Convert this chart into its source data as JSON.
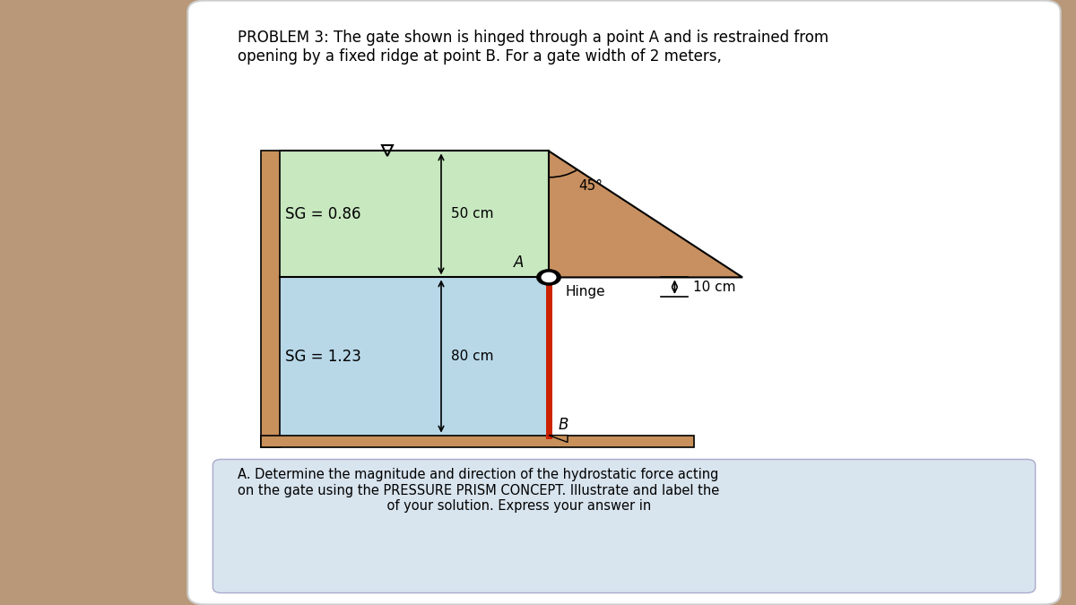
{
  "title_text": "PROBLEM 3: The gate shown is hinged through a point A and is restrained from\nopening by a fixed ridge at point B. For a gate width of 2 meters,",
  "bottom_text": "A. Determine the magnitude and direction of the hydrostatic force acting\non the gate using the PRESSURE PRISM CONCEPT. Illustrate and label the\n                                    of your solution. Express your answer in",
  "bg_color": "#b89878",
  "panel_bg": "#e8e8e8",
  "white_bg": "#ffffff",
  "fluid1_color": "#c8e8c0",
  "fluid2_color": "#b8d8e8",
  "gate_color": "#cc2200",
  "wall_brown": "#c8905a",
  "floor_brown": "#c8905a",
  "triangle_brown": "#c89060",
  "bottom_panel_color": "#d8e4ee",
  "sg1_text": "SG = 0.86",
  "sg2_text": "SG = 1.23",
  "dim1_text": "50 cm",
  "dim2_text": "80 cm",
  "dim3_text": "10 cm",
  "angle_text": "45°",
  "label_A": "A",
  "label_B": "B",
  "label_hinge": "Hinge",
  "title_fontsize": 12,
  "label_fontsize": 12,
  "small_fontsize": 11
}
